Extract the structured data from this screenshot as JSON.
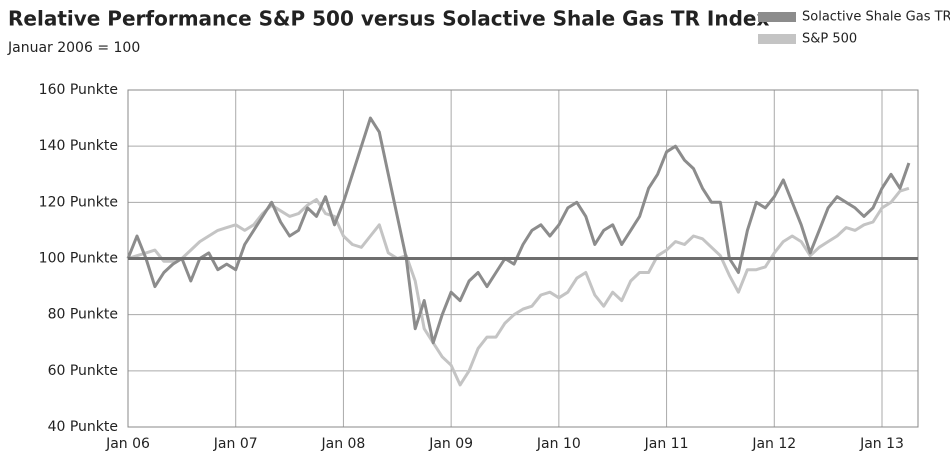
{
  "chart_data": {
    "type": "line",
    "title": "Relative Performance S&P 500 versus Solactive Shale Gas TR Index",
    "subtitle": "Januar 2006 = 100",
    "categories": [
      "Jan 06",
      null,
      null,
      null,
      null,
      null,
      null,
      null,
      null,
      null,
      null,
      null,
      "Jan 07",
      null,
      null,
      null,
      null,
      null,
      null,
      null,
      null,
      null,
      null,
      null,
      "Jan 08",
      null,
      null,
      null,
      null,
      null,
      null,
      null,
      null,
      null,
      null,
      null,
      "Jan 09",
      null,
      null,
      null,
      null,
      null,
      null,
      null,
      null,
      null,
      null,
      null,
      "Jan 10",
      null,
      null,
      null,
      null,
      null,
      null,
      null,
      null,
      null,
      null,
      null,
      "Jan 11",
      null,
      null,
      null,
      null,
      null,
      null,
      null,
      null,
      null,
      null,
      null,
      "Jan 12",
      null,
      null,
      null,
      null,
      null,
      null,
      null,
      null,
      null,
      null,
      null,
      "Jan 13",
      null,
      null,
      null
    ],
    "series": [
      {
        "name": "Solactive Shale Gas TR",
        "color": "#8c8c8c",
        "values": [
          100,
          108,
          100,
          90,
          95,
          98,
          100,
          92,
          100,
          102,
          96,
          98,
          96,
          105,
          110,
          115,
          120,
          113,
          108,
          110,
          118,
          115,
          122,
          112,
          120,
          130,
          140,
          150,
          145,
          130,
          115,
          100,
          75,
          85,
          70,
          80,
          88,
          85,
          92,
          95,
          90,
          95,
          100,
          98,
          105,
          110,
          112,
          108,
          112,
          118,
          120,
          115,
          105,
          110,
          112,
          105,
          110,
          115,
          125,
          130,
          138,
          140,
          135,
          132,
          125,
          120,
          120,
          100,
          95,
          110,
          120,
          118,
          122,
          128,
          120,
          112,
          102,
          110,
          118,
          122,
          120,
          118,
          115,
          118,
          125,
          130,
          125,
          134
        ]
      },
      {
        "name": "S&P 500",
        "color": "#c4c4c4",
        "values": [
          100,
          101,
          102,
          103,
          99,
          99,
          100,
          103,
          106,
          108,
          110,
          111,
          112,
          110,
          112,
          116,
          119,
          117,
          115,
          116,
          119,
          121,
          116,
          115,
          108,
          105,
          104,
          108,
          112,
          102,
          100,
          101,
          92,
          75,
          70,
          65,
          62,
          55,
          60,
          68,
          72,
          72,
          77,
          80,
          82,
          83,
          87,
          88,
          86,
          88,
          93,
          95,
          87,
          83,
          88,
          85,
          92,
          95,
          95,
          101,
          103,
          106,
          105,
          108,
          107,
          104,
          101,
          94,
          88,
          96,
          96,
          97,
          102,
          106,
          108,
          106,
          101,
          104,
          106,
          108,
          111,
          110,
          112,
          113,
          118,
          120,
          124,
          125
        ]
      }
    ],
    "reference_line": {
      "value": 100,
      "color": "#6e6e6e"
    },
    "ylim": [
      40,
      160
    ],
    "yticks": [
      {
        "value": 40,
        "label": "40 Punkte"
      },
      {
        "value": 60,
        "label": "60 Punkte"
      },
      {
        "value": 80,
        "label": "80 Punkte"
      },
      {
        "value": 100,
        "label": "100 Punkte"
      },
      {
        "value": 120,
        "label": "120 Punkte"
      },
      {
        "value": 140,
        "label": "140 Punkte"
      },
      {
        "value": 160,
        "label": "160 Punkte"
      }
    ],
    "grid": true,
    "legend": "top-right"
  }
}
